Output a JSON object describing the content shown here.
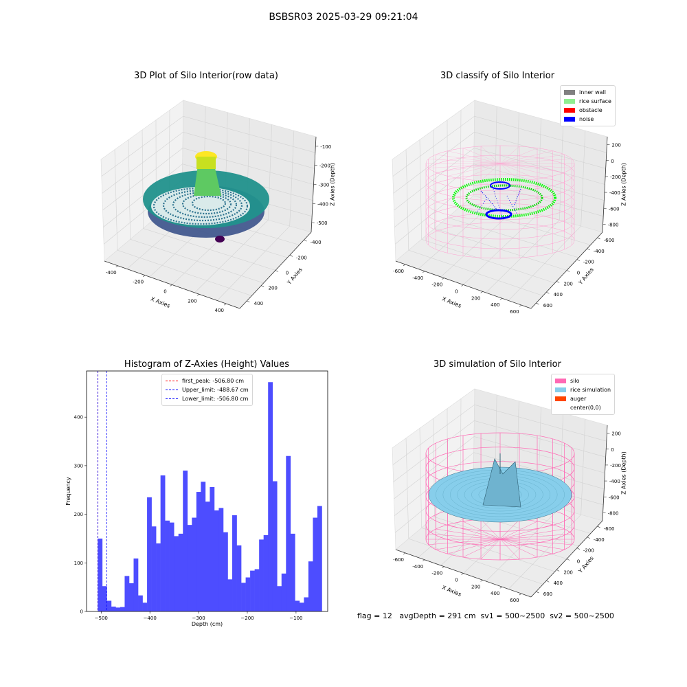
{
  "suptitle": "BSBSR03 2025-03-29 09:21:04",
  "footer": "flag = 12   avgDepth = 291 cm  sv1 = 500~2500  sv2 = 500~2500",
  "colors": {
    "inner_wall": "#808080",
    "rice_surface": "#90ee90",
    "obstacle": "#ff0000",
    "noise": "#0000ff",
    "silo": "#ff69b4",
    "rice_simulation": "#87ceeb",
    "auger": "#ff4500",
    "hist_bar": "#4d4dff",
    "first_peak": "#ff0000",
    "limit": "#0000ff"
  },
  "panels": [
    {
      "title": "3D Plot of Silo Interior(row data)",
      "x_ticks": [
        "-400",
        "-200",
        "0",
        "200",
        "400"
      ],
      "y_ticks": [
        "-400",
        "-200",
        "0",
        "200",
        "400"
      ],
      "z_ticks": [
        "-100",
        "-200",
        "-300",
        "-400",
        "-500"
      ],
      "xlabel": "X Axies",
      "ylabel": "Y Axies",
      "zlabel": "Z Axies (Depth)"
    },
    {
      "title": "3D classify of Silo Interior",
      "x_ticks": [
        "-600",
        "-400",
        "-200",
        "0",
        "200",
        "400",
        "600"
      ],
      "y_ticks": [
        "-600",
        "-400",
        "-200",
        "0",
        "200",
        "400",
        "600"
      ],
      "z_ticks": [
        "200",
        "0",
        "-200",
        "-400",
        "-600",
        "-800"
      ],
      "xlabel": "X Axies",
      "ylabel": "Y Axies",
      "zlabel": "Z Axies (Depth)",
      "legend": [
        "inner wall",
        "rice surface",
        "obstacle",
        "noise"
      ]
    },
    {
      "title": "Histogram of Z-Axies (Height) Values",
      "legend": [
        "first_peak: -506.80 cm",
        "Upper_limit: -488.67 cm",
        "Lower_limit: -506.80 cm"
      ]
    },
    {
      "title": "3D simulation of Silo Interior",
      "x_ticks": [
        "-600",
        "-400",
        "-200",
        "0",
        "200",
        "400",
        "600"
      ],
      "y_ticks": [
        "-600",
        "-400",
        "-200",
        "0",
        "200",
        "400",
        "600"
      ],
      "z_ticks": [
        "200",
        "0",
        "-200",
        "-400",
        "-600",
        "-800"
      ],
      "xlabel": "X Axies",
      "ylabel": "Y Axies",
      "zlabel": "Z Axies (Depth)",
      "legend": [
        "silo",
        "rice simulation",
        "auger",
        "center(0,0)"
      ]
    }
  ],
  "chart_data": [
    {
      "type": "scatter",
      "title": "3D Plot of Silo Interior(row data)",
      "xlabel": "X Axies",
      "ylabel": "Y Axies",
      "zlabel": "Z Axies (Depth)",
      "xlim": [
        -500,
        500
      ],
      "ylim": [
        -500,
        500
      ],
      "zlim": [
        -550,
        -50
      ],
      "colormap": "viridis",
      "grid": true
    },
    {
      "type": "scatter",
      "title": "3D classify of Silo Interior",
      "xlabel": "X Axies",
      "ylabel": "Y Axies",
      "zlabel": "Z Axies (Depth)",
      "xlim": [
        -650,
        650
      ],
      "ylim": [
        -650,
        650
      ],
      "zlim": [
        -900,
        300
      ],
      "series": [
        {
          "name": "inner wall"
        },
        {
          "name": "rice surface"
        },
        {
          "name": "obstacle"
        },
        {
          "name": "noise"
        }
      ],
      "legend_position": "top-right",
      "grid": true
    },
    {
      "type": "bar",
      "title": "Histogram of Z-Axies (Height) Values",
      "xlabel": "Depth (cm)",
      "ylabel": "Frequency",
      "xlim": [
        -530,
        -35
      ],
      "ylim": [
        0,
        495
      ],
      "x_ticks": [
        -500,
        -400,
        -300,
        -200,
        -100
      ],
      "y_ticks": [
        0,
        100,
        200,
        300,
        400
      ],
      "bin_start": -507,
      "bin_width": 9.2,
      "values": [
        150,
        52,
        22,
        10,
        8,
        9,
        73,
        58,
        109,
        33,
        18,
        235,
        175,
        140,
        280,
        187,
        183,
        155,
        160,
        290,
        178,
        193,
        246,
        267,
        226,
        256,
        208,
        213,
        163,
        66,
        198,
        136,
        59,
        70,
        84,
        87,
        148,
        157,
        472,
        268,
        52,
        78,
        320,
        160,
        22,
        18,
        29,
        103,
        193,
        217
      ],
      "vlines": [
        {
          "name": "first_peak: -506.80 cm",
          "x": -506.8
        },
        {
          "name": "Upper_limit: -488.67 cm",
          "x": -488.67
        },
        {
          "name": "Lower_limit: -506.80 cm",
          "x": -506.8
        }
      ],
      "legend_position": "top-center"
    },
    {
      "type": "surface",
      "title": "3D simulation of Silo Interior",
      "xlabel": "X Axies",
      "ylabel": "Y Axies",
      "zlabel": "Z Axies (Depth)",
      "xlim": [
        -650,
        650
      ],
      "ylim": [
        -650,
        650
      ],
      "zlim": [
        -900,
        300
      ],
      "series": [
        {
          "name": "silo"
        },
        {
          "name": "rice simulation"
        },
        {
          "name": "auger"
        },
        {
          "name": "center(0,0)"
        }
      ],
      "legend_position": "top-right",
      "grid": true
    }
  ]
}
